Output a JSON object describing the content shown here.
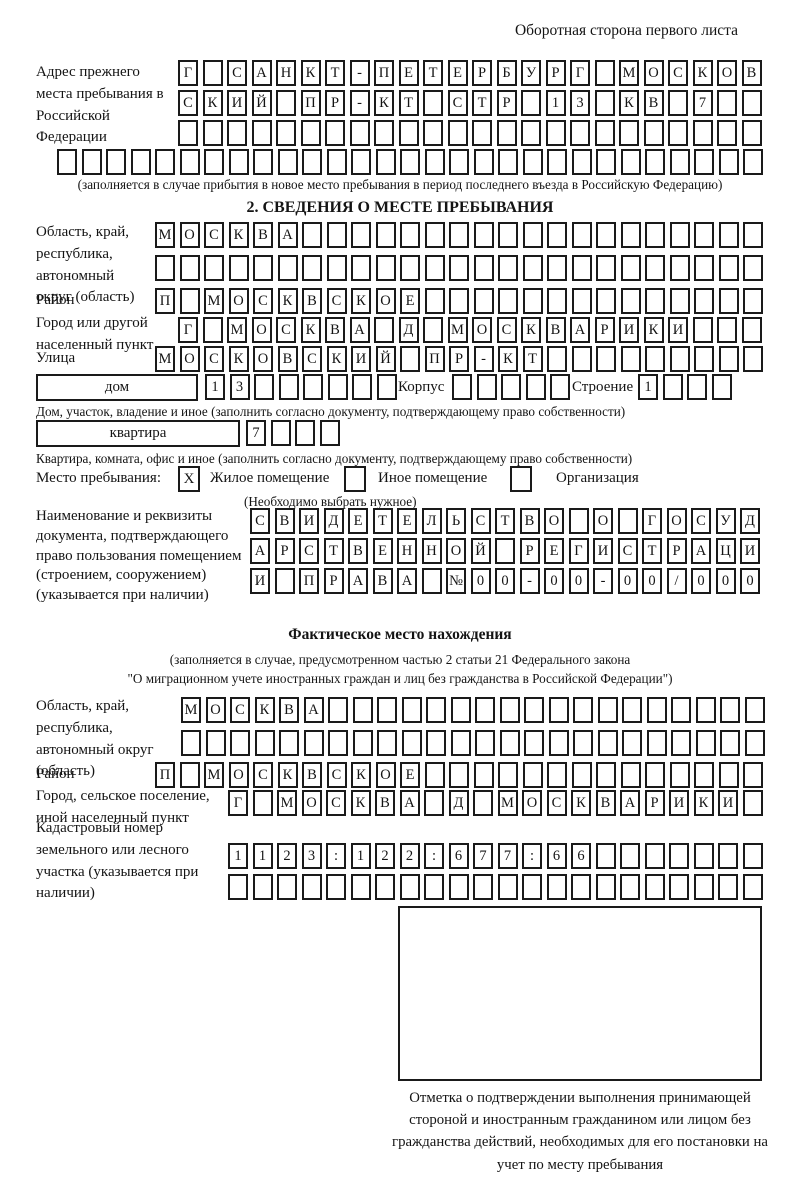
{
  "page": {
    "header_note": "Оборотная сторона первого листа"
  },
  "prev_address": {
    "label": "Адрес прежнего места пребывания в Российской Федерации",
    "rows": [
      {
        "len": 24,
        "text": "Г САНКТ-ПЕТЕРБУРГ МОСКОВ"
      },
      {
        "len": 24,
        "text": "СКИЙ ПР-КТ СТР 13 КВ 7"
      },
      {
        "len": 24,
        "text": ""
      },
      {
        "len": 29,
        "text": ""
      }
    ],
    "note": "(заполняется в случае прибытия в новое место пребывания в период последнего въезда в Российскую Федерацию)"
  },
  "section2": {
    "title": "2. СВЕДЕНИЯ О МЕСТЕ ПРЕБЫВАНИЯ",
    "region": {
      "label": "Область, край, республика, автономный округ (область)",
      "rows": [
        {
          "len": 25,
          "text": "МОСКВА"
        },
        {
          "len": 25,
          "text": ""
        }
      ]
    },
    "district": {
      "label": "Район",
      "row": {
        "len": 25,
        "text": "П МОСКВСКОЕ"
      }
    },
    "city": {
      "label": "Город или другой населенный пункт",
      "row": {
        "len": 24,
        "text": "Г МОСКВА Д МОСКВАРИКИ"
      }
    },
    "street": {
      "label": "Улица",
      "row": {
        "len": 25,
        "text": "МОСКОВСКИЙ ПР-КТ"
      }
    },
    "house": {
      "box_label": "дом",
      "house_cells": {
        "len": 8,
        "text": "13"
      },
      "korpus_label": "Корпус",
      "korpus_cells": {
        "len": 5,
        "text": ""
      },
      "stroenie_label": "Строение",
      "stroenie_cells": {
        "len": 4,
        "text": "1"
      },
      "note": "Дом, участок, владение и иное (заполнить согласно документу, подтверждающему право собственности)"
    },
    "apartment": {
      "box_label": "квартира",
      "cells": {
        "len": 4,
        "text": "7"
      },
      "note": "Квартира, комната, офис и иное (заполнить согласно документу, подтверждающему право собственности)"
    },
    "stay_type": {
      "label": "Место пребывания:",
      "checkbox1": "X",
      "option1": "Жилое помещение",
      "checkbox2": "",
      "option2": "Иное помещение",
      "checkbox3": "",
      "option3": "Организация",
      "note": "(Необходимо выбрать нужное)"
    },
    "document": {
      "label": "Наименование и реквизиты документа, подтверждающего право пользования помещением (строением, сооружением) (указывается при наличии)",
      "rows": [
        {
          "len": 21,
          "text": "СВИДЕТЕЛЬСТВО О ГОСУД"
        },
        {
          "len": 21,
          "text": "АРСТВЕННОЙ РЕГИСТРАЦИ"
        },
        {
          "len": 21,
          "text": "И ПРАВА №00-00-00/000"
        }
      ]
    }
  },
  "actual_location": {
    "title": "Фактическое место нахождения",
    "note_line1": "(заполняется в случае, предусмотренном частью 2 статьи 21 Федерального закона",
    "note_line2": "\"О миграционном учете иностранных граждан и лиц без гражданства в Российской Федерации\")",
    "region": {
      "label": "Область, край, республика, автономный округ (область)",
      "rows": [
        {
          "len": 24,
          "text": "МОСКВА"
        },
        {
          "len": 24,
          "text": ""
        }
      ]
    },
    "district": {
      "label": "Район",
      "row": {
        "len": 25,
        "text": "П МОСКВСКОЕ"
      }
    },
    "city": {
      "label": "Город, сельское поселение, иной населенный пункт",
      "row": {
        "len": 22,
        "text": "Г МОСКВА Д МОСКВАРИКИ"
      }
    },
    "cadastre": {
      "label": "Кадастровый номер земельного или лесного участка (указывается при наличии)",
      "rows": [
        {
          "len": 22,
          "text": "1123:122:677:66"
        },
        {
          "len": 22,
          "text": ""
        }
      ]
    },
    "stamp_caption": "Отметка о подтверждении выполнения принимающей стороной и иностранным гражданином или лицом без гражданства действий, необходимых для его постановки на учет по месту пребывания"
  }
}
